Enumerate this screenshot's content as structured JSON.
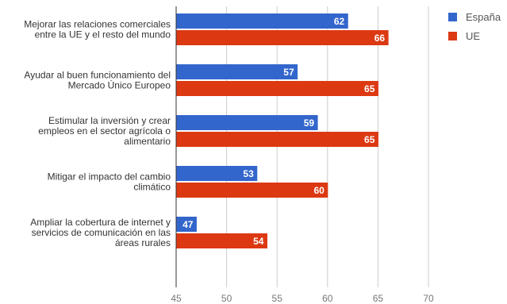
{
  "chart_data": {
    "type": "bar",
    "orientation": "horizontal",
    "categories": [
      [
        "Mejorar las relaciones comerciales",
        "entre la UE y el resto del mundo"
      ],
      [
        "Ayudar al buen funcionamiento del",
        "Mercado Único Europeo"
      ],
      [
        "Estimular la inversión y crear",
        "empleos en el sector agrícola o",
        "alimentario"
      ],
      [
        "Mitigar el impacto del cambio",
        "climático"
      ],
      [
        "Ampliar la cobertura de internet y",
        "servicios de comunicación en las",
        "áreas rurales"
      ]
    ],
    "series": [
      {
        "name": "España",
        "color": "#3366cc",
        "values": [
          62,
          57,
          59,
          53,
          47
        ]
      },
      {
        "name": "UE",
        "color": "#dc3912",
        "values": [
          66,
          65,
          65,
          60,
          54
        ]
      }
    ],
    "xlim": [
      45,
      70
    ],
    "xticks": [
      45,
      50,
      55,
      60,
      65,
      70
    ],
    "grid": true,
    "legend": "top-right"
  }
}
